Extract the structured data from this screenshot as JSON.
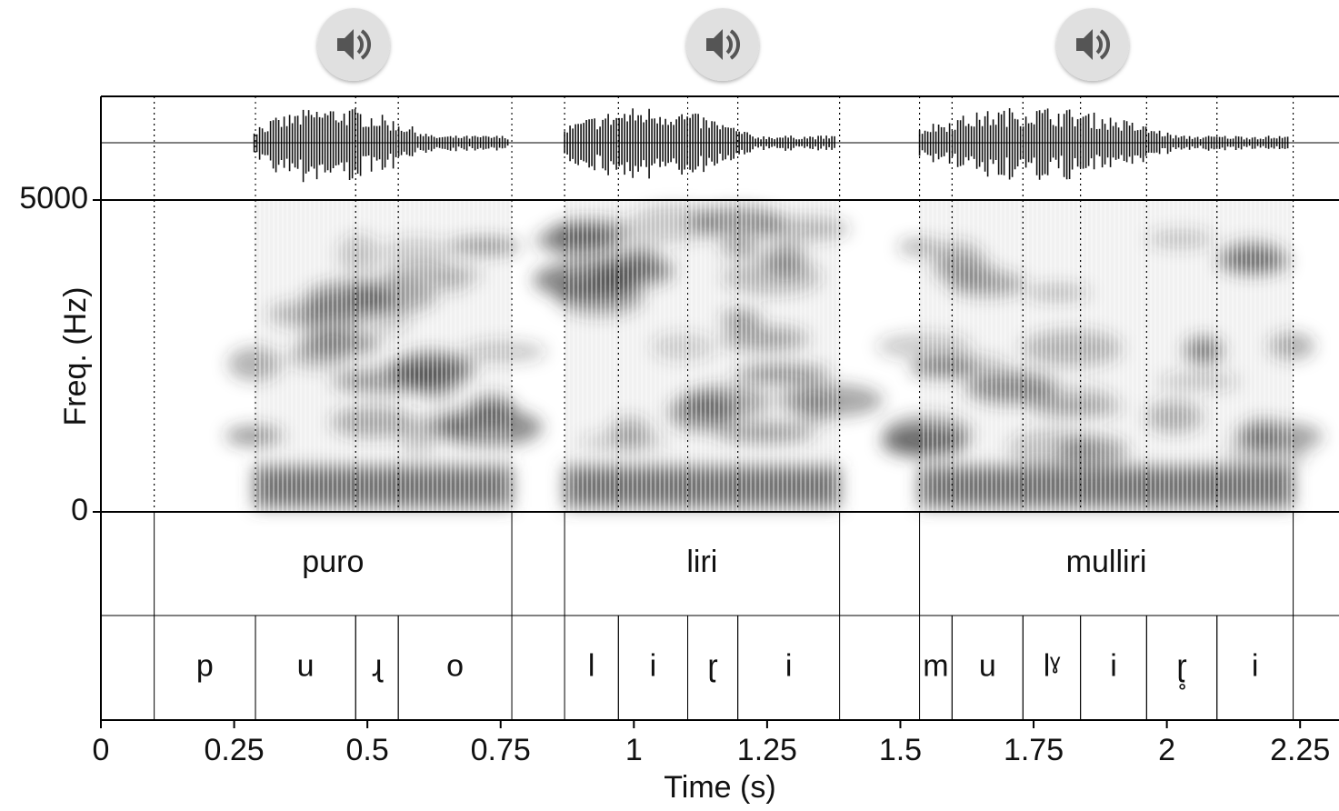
{
  "chart_data": {
    "type": "spectrogram",
    "xlabel": "Time (s)",
    "ylabel": "Freq. (Hz)",
    "xlim": [
      0,
      2.323
    ],
    "xticks": [
      0,
      0.25,
      0.5,
      0.75,
      1,
      1.25,
      1.5,
      1.75,
      2,
      2.25
    ],
    "ylim": [
      0,
      5000
    ],
    "yticks": [
      0,
      5000
    ],
    "tiers": [
      {
        "intervals": [
          {
            "label": "puro",
            "start": 0.1,
            "end": 0.771
          },
          {
            "label": "liri",
            "start": 0.87,
            "end": 1.386
          },
          {
            "label": "mulliri",
            "start": 1.536,
            "end": 2.237
          }
        ]
      },
      {
        "intervals": [
          {
            "label": "p",
            "start": 0.1,
            "end": 0.29
          },
          {
            "label": "u",
            "start": 0.29,
            "end": 0.478
          },
          {
            "label": "ɻ",
            "start": 0.478,
            "end": 0.558
          },
          {
            "label": "o",
            "start": 0.558,
            "end": 0.771
          },
          {
            "label": "l",
            "start": 0.87,
            "end": 0.971
          },
          {
            "label": "i",
            "start": 0.971,
            "end": 1.101
          },
          {
            "label": "ɽ",
            "start": 1.101,
            "end": 1.195
          },
          {
            "label": "i",
            "start": 1.195,
            "end": 1.386
          },
          {
            "label": "m",
            "start": 1.536,
            "end": 1.597
          },
          {
            "label": "u",
            "start": 1.597,
            "end": 1.73
          },
          {
            "label": "lˠ",
            "start": 1.73,
            "end": 1.838
          },
          {
            "label": "i",
            "start": 1.838,
            "end": 1.962
          },
          {
            "label": "ɽ̥",
            "start": 1.962,
            "end": 2.094
          },
          {
            "label": "i",
            "start": 2.094,
            "end": 2.237
          }
        ]
      }
    ]
  }
}
